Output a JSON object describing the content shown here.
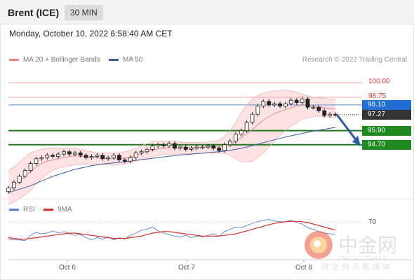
{
  "header": {
    "instrument": "Brent (ICE)",
    "timeframe": "30 MIN"
  },
  "datetime": "Monday, October 10, 2022 6:58:40 AM CET",
  "legend": {
    "ma20_bb": "MA 20 + Bollinger Bands",
    "ma50": "MA 50",
    "copyright": "Research © 2022 Trading Central",
    "colors": {
      "ma20_bb": "#f08080",
      "ma50": "#3a5ba0"
    }
  },
  "rsi_legend": {
    "rsi": "RSI",
    "ma9": "9MA",
    "colors": {
      "rsi": "#5b7fd6",
      "ma9": "#d92b2b"
    }
  },
  "watermark": {
    "name": "中金网",
    "url": "CNGOLD.COM.CN",
    "tagline": "财 文 财 讯 新 媒 体"
  },
  "chart_data": [
    {
      "type": "candlestick",
      "title": "Brent (ICE)",
      "ylim": [
        90.2,
        101.2
      ],
      "x_ticks": [
        "Oct 6",
        "Oct 7",
        "Oct 8"
      ],
      "levels": [
        {
          "value": 100.0,
          "label": "100.00",
          "style": "resistance",
          "color": "#f0a0a0"
        },
        {
          "value": 98.75,
          "label": "98.75",
          "style": "resistance",
          "color": "#f0a0a0"
        },
        {
          "value": 98.1,
          "label": "98.10",
          "style": "pivot",
          "color": "#1f6fd6"
        },
        {
          "value": 97.27,
          "label": "97.27",
          "style": "last",
          "color": "#333333"
        },
        {
          "value": 95.9,
          "label": "95.90",
          "style": "support",
          "color": "#1f8a1f"
        },
        {
          "value": 94.7,
          "label": "94.70",
          "style": "support",
          "color": "#1f8a1f"
        }
      ],
      "close": [
        91.0,
        91.5,
        92.0,
        92.5,
        93.1,
        93.5,
        93.6,
        93.8,
        93.7,
        93.9,
        94.1,
        93.9,
        94.0,
        93.8,
        93.6,
        93.7,
        93.8,
        93.5,
        93.6,
        93.8,
        93.4,
        93.3,
        93.6,
        94.0,
        94.1,
        94.3,
        94.6,
        94.7,
        94.6,
        94.8,
        94.4,
        94.5,
        94.3,
        94.4,
        94.5,
        94.5,
        94.6,
        94.4,
        94.2,
        94.7,
        95.0,
        95.6,
        95.9,
        96.6,
        97.3,
        98.0,
        98.4,
        98.1,
        98.2,
        98.0,
        98.2,
        98.5,
        98.3,
        98.6,
        97.9,
        97.9,
        97.6,
        97.2,
        97.3,
        97.27
      ],
      "ma20": [
        90.9,
        91.2,
        91.6,
        92.0,
        92.4,
        92.8,
        93.1,
        93.3,
        93.4,
        93.5,
        93.6,
        93.7,
        93.75,
        93.7,
        93.65,
        93.6,
        93.6,
        93.55,
        93.5,
        93.5,
        93.5,
        93.55,
        93.65,
        93.8,
        93.95,
        94.1,
        94.25,
        94.35,
        94.4,
        94.45,
        94.45,
        94.45,
        94.45,
        94.45,
        94.45,
        94.45,
        94.5,
        94.5,
        94.5,
        94.6,
        94.75,
        95.0,
        95.3,
        95.65,
        96.0,
        96.4,
        96.8,
        97.1,
        97.35,
        97.55,
        97.7,
        97.85,
        98.0,
        98.1,
        98.05,
        98.0,
        97.95,
        97.85,
        97.8,
        97.75
      ],
      "bb_upper": [
        92.5,
        92.8,
        93.2,
        93.6,
        94.0,
        94.2,
        94.3,
        94.4,
        94.4,
        94.4,
        94.4,
        94.4,
        94.4,
        94.3,
        94.2,
        94.1,
        94.0,
        94.0,
        94.0,
        94.0,
        94.0,
        94.1,
        94.2,
        94.4,
        94.6,
        94.8,
        94.95,
        95.0,
        95.0,
        95.0,
        95.0,
        94.95,
        94.9,
        94.9,
        94.9,
        94.9,
        94.95,
        95.0,
        95.1,
        95.4,
        95.9,
        96.6,
        97.4,
        98.1,
        98.6,
        98.9,
        99.1,
        99.2,
        99.3,
        99.35,
        99.4,
        99.3,
        99.2,
        99.0,
        98.9,
        98.75,
        98.7,
        98.65,
        98.6,
        98.6
      ],
      "bb_lower": [
        89.6,
        89.8,
        90.1,
        90.4,
        90.8,
        91.3,
        91.8,
        92.2,
        92.5,
        92.7,
        92.8,
        92.9,
        93.0,
        93.05,
        93.05,
        93.05,
        93.05,
        93.0,
        92.95,
        92.95,
        93.0,
        93.05,
        93.15,
        93.3,
        93.45,
        93.6,
        93.7,
        93.8,
        93.85,
        93.9,
        93.9,
        93.9,
        93.95,
        93.95,
        93.95,
        93.95,
        94.0,
        94.0,
        94.0,
        93.95,
        93.8,
        93.5,
        93.25,
        93.2,
        93.3,
        93.6,
        94.0,
        94.5,
        95.0,
        95.5,
        95.9,
        96.3,
        96.6,
        96.9,
        97.0,
        97.1,
        97.15,
        97.1,
        97.05,
        97.0
      ],
      "ma50": [
        90.6,
        90.75,
        90.9,
        91.05,
        91.2,
        91.4,
        91.6,
        91.8,
        92.0,
        92.15,
        92.3,
        92.45,
        92.6,
        92.7,
        92.8,
        92.9,
        92.98,
        93.05,
        93.1,
        93.15,
        93.2,
        93.25,
        93.3,
        93.36,
        93.42,
        93.48,
        93.54,
        93.6,
        93.66,
        93.72,
        93.77,
        93.82,
        93.86,
        93.9,
        93.94,
        93.98,
        94.02,
        94.06,
        94.1,
        94.15,
        94.22,
        94.3,
        94.4,
        94.5,
        94.62,
        94.75,
        94.88,
        95.0,
        95.12,
        95.24,
        95.36,
        95.46,
        95.56,
        95.66,
        95.76,
        95.86,
        95.94,
        96.02,
        96.1,
        96.18
      ],
      "projection": {
        "from_value": 97.27,
        "to_value": 94.7
      }
    },
    {
      "type": "line",
      "title": "RSI",
      "levels": [
        {
          "value": 70,
          "label": "70"
        }
      ],
      "series": [
        {
          "name": "RSI",
          "values": [
            47,
            46,
            46,
            45,
            52,
            56,
            54,
            55,
            58,
            55,
            57,
            54,
            52,
            53,
            49,
            46,
            49,
            47,
            50,
            46,
            49,
            47,
            52,
            55,
            59,
            60,
            63,
            58,
            55,
            53,
            51,
            50,
            52,
            49,
            51,
            50,
            52,
            54,
            51,
            57,
            60,
            63,
            62,
            65,
            68,
            70,
            72,
            73,
            71,
            70,
            70,
            72,
            69,
            67,
            62,
            60,
            57,
            55,
            54,
            53
          ]
        },
        {
          "name": "9MA",
          "values": [
            49,
            48,
            47,
            47,
            48,
            49,
            50,
            51,
            52,
            53,
            54,
            55,
            55,
            54,
            53,
            52,
            51,
            50,
            49,
            48,
            48,
            48,
            49,
            50,
            51,
            53,
            55,
            56,
            57,
            57,
            56,
            55,
            54,
            53,
            52,
            51,
            51,
            51,
            51,
            52,
            53,
            54,
            56,
            58,
            60,
            62,
            64,
            66,
            68,
            69,
            70,
            70.5,
            70.5,
            70,
            69,
            67,
            65,
            63,
            61,
            59
          ]
        }
      ]
    }
  ]
}
